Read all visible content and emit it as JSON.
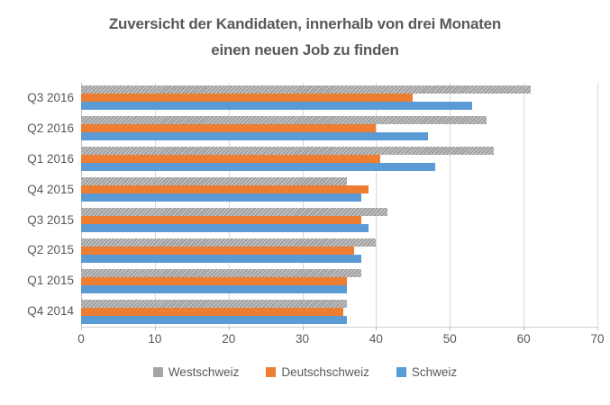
{
  "chart_data": {
    "type": "bar",
    "orientation": "horizontal",
    "title": "Zuversicht der Kandidaten, innerhalb von drei Monaten einen neuen Job zu finden",
    "title_lines": [
      "Zuversicht der Kandidaten, innerhalb von drei Monaten",
      "einen neuen Job zu finden"
    ],
    "categories": [
      "Q3 2016",
      "Q2 2016",
      "Q1 2016",
      "Q4 2015",
      "Q3 2015",
      "Q2 2015",
      "Q1 2015",
      "Q4 2014"
    ],
    "series": [
      {
        "name": "Westschweiz",
        "color": "#a5a5a5",
        "fill_style": "diagonal-hatch-pattern",
        "values": [
          61,
          55,
          56,
          36,
          41.5,
          40,
          38,
          36
        ]
      },
      {
        "name": "Deutschschweiz",
        "color": "#ed7d31",
        "fill_style": "solid",
        "values": [
          45,
          40,
          40.5,
          39,
          38,
          37,
          36,
          35.5
        ]
      },
      {
        "name": "Schweiz",
        "color": "#5b9bd5",
        "fill_style": "solid",
        "values": [
          53,
          47,
          48,
          38,
          39,
          38,
          36,
          36
        ]
      }
    ],
    "x_axis": {
      "min": 0,
      "max": 70,
      "tick_interval": 10,
      "tick_labels": [
        "0",
        "10",
        "20",
        "30",
        "40",
        "50",
        "60",
        "70"
      ]
    },
    "legend": {
      "position": "bottom",
      "entries": [
        "Westschweiz",
        "Deutschschweiz",
        "Schweiz"
      ]
    },
    "grid": true,
    "colors": {
      "title_text": "#595959",
      "axis_text": "#595959",
      "gridline": "#d9d9d9"
    }
  }
}
